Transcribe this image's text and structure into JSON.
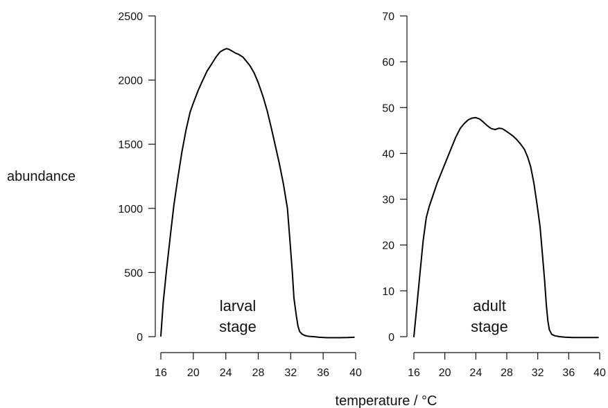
{
  "figure": {
    "ylabel": "abundance",
    "xlabel": "temperature / °C"
  },
  "chart_data": [
    {
      "type": "line",
      "annotation": [
        "larval",
        "stage"
      ],
      "xlim": [
        16,
        40
      ],
      "ylim": [
        0,
        2500
      ],
      "xticks": [
        16,
        20,
        24,
        28,
        32,
        36,
        40
      ],
      "yticks": [
        0,
        500,
        1000,
        1500,
        2000,
        2500
      ],
      "x": [
        16.0,
        16.3,
        16.7,
        17.2,
        17.6,
        18.1,
        18.6,
        19.1,
        19.6,
        20.0,
        20.6,
        21.1,
        21.7,
        22.2,
        22.8,
        23.3,
        23.7,
        24.1,
        24.4,
        24.8,
        25.2,
        25.6,
        26.1,
        26.5,
        27.0,
        27.5,
        28.0,
        28.6,
        29.1,
        29.6,
        30.1,
        30.6,
        31.1,
        31.6,
        31.9,
        32.2,
        32.4,
        32.7,
        32.9,
        33.1,
        33.4,
        33.7,
        34.0,
        34.3,
        34.8,
        35.5,
        36.5,
        38.0,
        39.0,
        39.8
      ],
      "values": [
        5,
        270,
        520,
        800,
        1020,
        1240,
        1440,
        1610,
        1750,
        1820,
        1920,
        1990,
        2070,
        2120,
        2180,
        2220,
        2235,
        2245,
        2240,
        2225,
        2210,
        2200,
        2180,
        2150,
        2110,
        2055,
        1980,
        1870,
        1760,
        1630,
        1490,
        1350,
        1190,
        1000,
        750,
        500,
        300,
        160,
        80,
        40,
        20,
        10,
        5,
        2,
        0,
        -5,
        -8,
        -8,
        -7,
        -5
      ]
    },
    {
      "type": "line",
      "annotation": [
        "adult",
        "stage"
      ],
      "xlim": [
        16,
        40
      ],
      "ylim": [
        0,
        70
      ],
      "xticks": [
        16,
        20,
        24,
        28,
        32,
        36,
        40
      ],
      "yticks": [
        0,
        10,
        20,
        30,
        40,
        50,
        60,
        70
      ],
      "x": [
        16.0,
        16.4,
        16.8,
        17.2,
        17.6,
        18.0,
        18.5,
        19.0,
        19.6,
        20.2,
        20.8,
        21.4,
        22.0,
        22.5,
        23.0,
        23.5,
        24.0,
        24.5,
        25.0,
        25.5,
        26.0,
        26.5,
        27.0,
        27.4,
        27.8,
        28.3,
        28.8,
        29.3,
        29.8,
        30.3,
        30.7,
        31.1,
        31.5,
        31.9,
        32.3,
        32.6,
        32.9,
        33.1,
        33.3,
        33.5,
        33.8,
        34.2,
        34.8,
        35.5,
        36.5,
        38.0,
        39.8
      ],
      "values": [
        0,
        7,
        14,
        21,
        26,
        28.5,
        31,
        33.5,
        36,
        38.5,
        41,
        43.5,
        45.5,
        46.5,
        47.3,
        47.7,
        47.8,
        47.5,
        46.8,
        46.0,
        45.4,
        45.2,
        45.5,
        45.4,
        45.0,
        44.4,
        43.8,
        43.0,
        42.0,
        40.8,
        39.2,
        37.0,
        33.5,
        29.0,
        24.0,
        18.0,
        12.0,
        7.0,
        3.5,
        1.5,
        0.5,
        0.2,
        0,
        -0.1,
        -0.2,
        -0.2,
        -0.2
      ]
    }
  ]
}
